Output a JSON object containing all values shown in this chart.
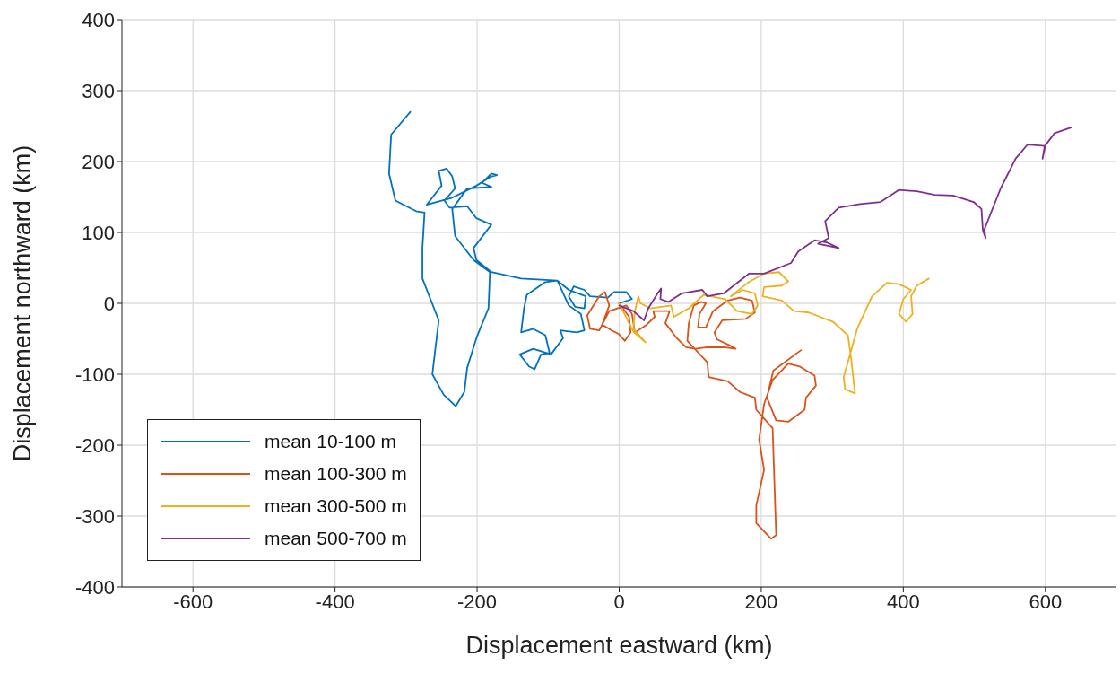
{
  "chart_data": {
    "type": "line",
    "xlabel": "Displacement eastward (km)",
    "ylabel": "Displacement northward (km)",
    "xlim": [
      -700,
      700
    ],
    "xticks": [
      -600,
      -400,
      -200,
      0,
      200,
      400,
      600
    ],
    "ylim": [
      -400,
      400
    ],
    "yticks": [
      -400,
      -300,
      -200,
      -100,
      0,
      100,
      200,
      300,
      400
    ],
    "grid": true,
    "legend": "bottom left",
    "marker": "none",
    "line_style": "solid",
    "series": [
      {
        "name": "mean 10-100 m",
        "color": "#0072bd",
        "x": [
          0,
          18,
          10,
          -7,
          -16,
          -41,
          -49,
          -64,
          -71,
          -62,
          -49,
          -47,
          -71,
          -87,
          -104,
          -130,
          -134,
          -138,
          -121,
          -104,
          -98,
          -110,
          -119,
          -127,
          -140,
          -121,
          -96,
          -79,
          -83,
          -60,
          -49,
          -54,
          -71,
          -87,
          -138,
          -180,
          -201,
          -205,
          -180,
          -201,
          -214,
          -239,
          -246,
          -231,
          -235,
          -243,
          -254,
          -250,
          -271,
          -235,
          -201,
          -180,
          -172,
          -180,
          -193,
          -180,
          -214,
          -235,
          -231,
          -205,
          -182,
          -184,
          -201,
          -214,
          -218,
          -230,
          -247,
          -263,
          -254,
          -277,
          -277,
          -274,
          -286,
          -315,
          -324,
          -321,
          -294
        ],
        "values": [
          0,
          6,
          16,
          16,
          8,
          10,
          19,
          24,
          10,
          -5,
          -7,
          10,
          19,
          32,
          30,
          12,
          -7,
          -41,
          -36,
          -45,
          -70,
          -72,
          -93,
          -89,
          -72,
          -64,
          -72,
          -49,
          -38,
          -41,
          -38,
          -15,
          -3,
          32,
          35,
          44,
          61,
          78,
          111,
          120,
          137,
          135,
          145,
          162,
          179,
          190,
          187,
          166,
          139,
          149,
          166,
          179,
          181,
          183,
          170,
          164,
          162,
          133,
          95,
          61,
          44,
          -7,
          -49,
          -91,
          -125,
          -145,
          -129,
          -100,
          -24,
          35,
          78,
          128,
          130,
          145,
          183,
          238,
          270
        ]
      },
      {
        "name": "mean 100-300 m",
        "color": "#d95319",
        "x": [
          0,
          14,
          16,
          8,
          -1,
          -11,
          -24,
          -14,
          -20,
          -28,
          -45,
          -41,
          -28,
          -14,
          10,
          18,
          22,
          39,
          50,
          48,
          71,
          65,
          81,
          94,
          107,
          124,
          147,
          164,
          155,
          138,
          134,
          145,
          178,
          191,
          187,
          170,
          153,
          132,
          122,
          111,
          113,
          122,
          115,
          105,
          98,
          96,
          124,
          126,
          153,
          170,
          191,
          193,
          216,
          221,
          214,
          193,
          193,
          204,
          197,
          204,
          216,
          238,
          254,
          275,
          277,
          263,
          261,
          238,
          221,
          208,
          217,
          256
        ],
        "values": [
          0,
          -19,
          -41,
          -53,
          -43,
          -38,
          -30,
          -3,
          16,
          10,
          -17,
          -36,
          -38,
          -11,
          -3,
          -15,
          -41,
          -30,
          -19,
          -11,
          -11,
          -28,
          -49,
          -62,
          -64,
          -62,
          -62,
          -64,
          -59,
          -51,
          -41,
          -24,
          -22,
          -13,
          4,
          8,
          4,
          -11,
          -34,
          -34,
          -15,
          0,
          2,
          -3,
          -28,
          -53,
          -83,
          -104,
          -110,
          -125,
          -133,
          -150,
          -176,
          -327,
          -332,
          -310,
          -285,
          -235,
          -192,
          -142,
          -108,
          -85,
          -89,
          -102,
          -116,
          -133,
          -150,
          -167,
          -165,
          -133,
          -95,
          -66
        ]
      },
      {
        "name": "mean 300-500 m",
        "color": "#edb120",
        "x": [
          0,
          10,
          20,
          37,
          20,
          22,
          27,
          30,
          44,
          73,
          77,
          98,
          119,
          149,
          166,
          187,
          195,
          191,
          174,
          157,
          181,
          204,
          225,
          238,
          229,
          204,
          202,
          229,
          246,
          267,
          301,
          322,
          326,
          332,
          318,
          316,
          335,
          356,
          377,
          394,
          411,
          400,
          394,
          404,
          413,
          411,
          419,
          436
        ],
        "values": [
          0,
          -20,
          -40,
          -55,
          -36,
          -11,
          10,
          0,
          -7,
          -3,
          -19,
          -7,
          12,
          6,
          -11,
          -15,
          -3,
          14,
          19,
          10,
          29,
          42,
          44,
          31,
          25,
          23,
          10,
          4,
          -11,
          -13,
          -26,
          -45,
          -74,
          -127,
          -121,
          -104,
          -36,
          10,
          29,
          27,
          19,
          6,
          -15,
          -26,
          -15,
          10,
          25,
          35
        ]
      },
      {
        "name": "mean 500-700 m",
        "color": "#7e2f8e",
        "x": [
          0,
          20,
          35,
          41,
          54,
          59,
          58,
          69,
          88,
          117,
          124,
          147,
          183,
          204,
          242,
          252,
          275,
          292,
          309,
          280,
          295,
          290,
          309,
          339,
          368,
          394,
          419,
          444,
          470,
          499,
          510,
          512,
          516,
          514,
          537,
          558,
          575,
          599,
          596,
          600,
          613,
          636
        ],
        "values": [
          -3,
          -11,
          -24,
          -7,
          14,
          21,
          6,
          2,
          14,
          19,
          10,
          14,
          42,
          42,
          57,
          73,
          89,
          86,
          78,
          84,
          92,
          116,
          135,
          140,
          143,
          160,
          158,
          153,
          152,
          143,
          133,
          103,
          92,
          104,
          162,
          204,
          224,
          222,
          204,
          223,
          240,
          248
        ]
      }
    ]
  }
}
